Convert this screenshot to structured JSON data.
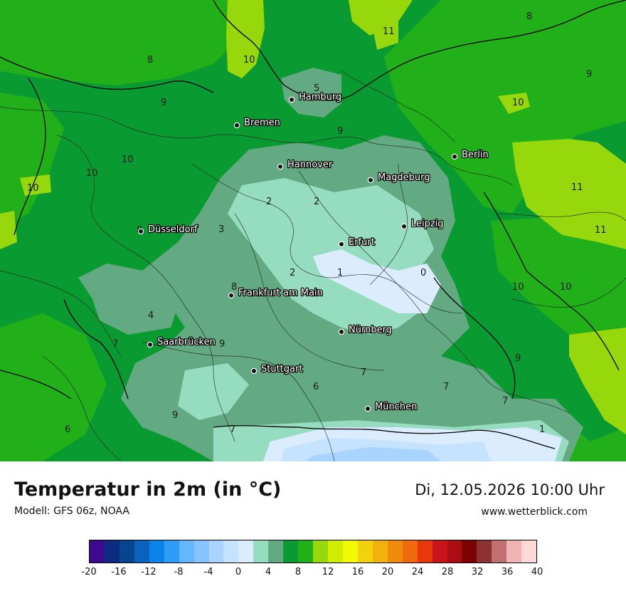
{
  "header": {
    "title": "Temperatur in 2m (in °C)",
    "model": "Modell: GFS 06z, NOAA",
    "datetime": "Di, 12.05.2026 10:00 Uhr",
    "website": "www.wetterblick.com"
  },
  "cities": [
    {
      "name": "Hamburg"
    },
    {
      "name": "Bremen"
    },
    {
      "name": "Hannover"
    },
    {
      "name": "Berlin"
    },
    {
      "name": "Magdeburg"
    },
    {
      "name": "Düsseldorf"
    },
    {
      "name": "Leipzig"
    },
    {
      "name": "Erfurt"
    },
    {
      "name": "Frankfurt am Main"
    },
    {
      "name": "Nürnberg"
    },
    {
      "name": "Saarbrücken"
    },
    {
      "name": "Stuttgart"
    },
    {
      "name": "München"
    }
  ],
  "isotherm_labels": [
    "8",
    "11",
    "8",
    "9",
    "10",
    "9",
    "5",
    "10",
    "9",
    "10",
    "10",
    "10",
    "11",
    "11",
    "3",
    "2",
    "2",
    "8",
    "1",
    "0",
    "2",
    "8",
    "4",
    "10",
    "10",
    "7",
    "9",
    "9",
    "7",
    "6",
    "7",
    "7",
    "9",
    "6",
    "7",
    "1"
  ],
  "legend": {
    "ticks": [
      "-20",
      "-16",
      "-12",
      "-8",
      "-4",
      "0",
      "4",
      "8",
      "12",
      "16",
      "20",
      "24",
      "28",
      "32",
      "36",
      "40"
    ],
    "colors": [
      "#3c0a8c",
      "#0c2c82",
      "#08458f",
      "#0a62bd",
      "#0a84e6",
      "#2f9df5",
      "#66b6ff",
      "#86c4ff",
      "#a8d4ff",
      "#c5e2ff",
      "#dcecff",
      "#96dcc0",
      "#63aa82",
      "#0a9a32",
      "#22b01a",
      "#96d80c",
      "#d2ec00",
      "#f0fa00",
      "#f2d20c",
      "#f2b20c",
      "#f08c0c",
      "#ee6a0c",
      "#e6380a",
      "#c8141a",
      "#aa0e12",
      "#7d0000",
      "#8c3232",
      "#c07070",
      "#f0b4b4",
      "#ffd8d8"
    ]
  }
}
